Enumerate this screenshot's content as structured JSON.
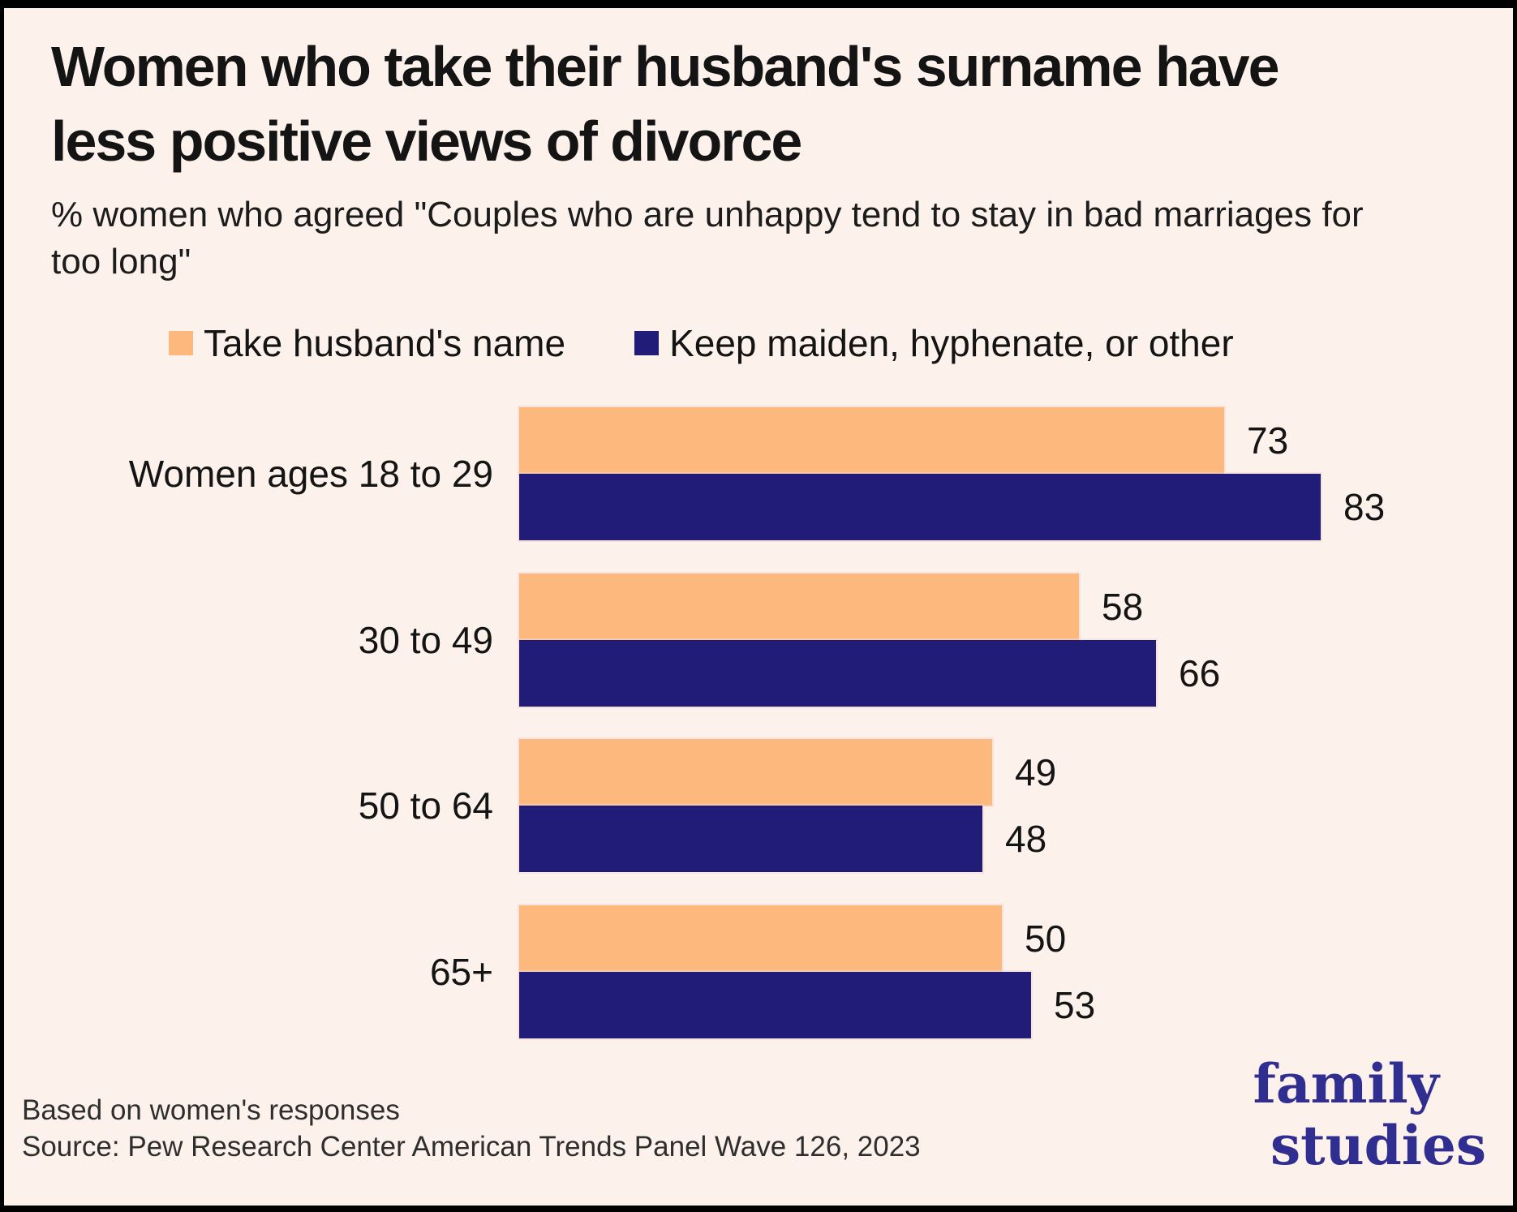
{
  "title": {
    "line1": "Women who take their husband's surname have",
    "line2": "less positive views of divorce"
  },
  "subtitle": {
    "line1": "% women who agreed \"Couples who are unhappy tend to stay in bad marriages for",
    "line2": "too long\""
  },
  "legend": {
    "items": [
      {
        "label": "Take husband's name",
        "color": "#FDB87D"
      },
      {
        "label": "Keep maiden, hyphenate, or other",
        "color": "#211C77"
      }
    ]
  },
  "chart_data": {
    "type": "bar",
    "orientation": "horizontal",
    "title": "Women who take their husband's surname have less positive views of divorce",
    "subtitle": "% women who agreed \"Couples who are unhappy tend to stay in bad marriages for too long\"",
    "categories": [
      "Women ages 18 to 29",
      "30 to 49",
      "50 to 64",
      "65+"
    ],
    "series": [
      {
        "name": "Take husband's name",
        "color": "#FDB87D",
        "values": [
          73,
          58,
          49,
          50
        ]
      },
      {
        "name": "Keep maiden, hyphenate, or other",
        "color": "#211C77",
        "values": [
          83,
          66,
          48,
          53
        ]
      }
    ],
    "value_labels_shown": true,
    "xlim": [
      0,
      100
    ],
    "grid": false,
    "legend_position": "top"
  },
  "footer": {
    "note": "Based on women's responses",
    "source": "Source: Pew Research Center American Trends Panel Wave 126, 2023"
  },
  "logo": {
    "line1": "family",
    "line2": "studies",
    "color": "#312E91"
  },
  "colors": {
    "background": "#FCF2EB",
    "frame": "#000000",
    "bar_take_name": "#FDB87D",
    "bar_keep_name": "#211C77",
    "text": "#141414",
    "footer_text": "#2e2e2e"
  }
}
